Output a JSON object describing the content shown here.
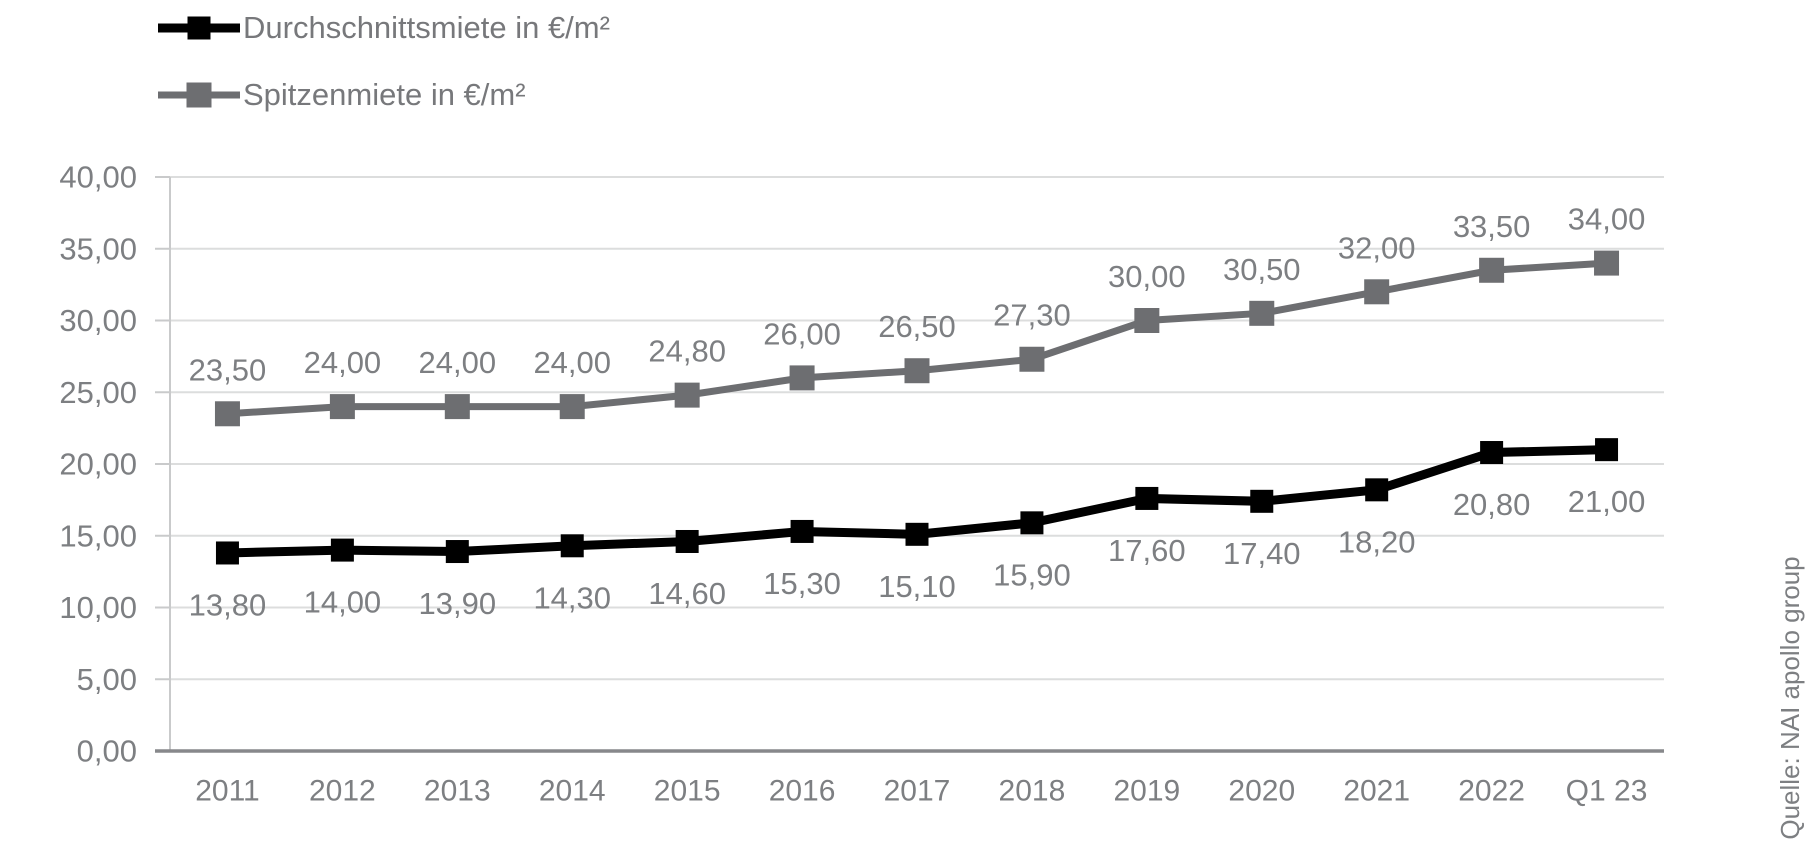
{
  "source_note": "Quelle: NAI apollo group",
  "colors": {
    "background": "#ffffff",
    "text_gray": "#7d7f82",
    "series_black": "#000000",
    "series_gray": "#6d6e71",
    "gridline": "#dcdddd",
    "axis_light": "#c9cacb",
    "axis_dark": "#87888b"
  },
  "chart_data": {
    "type": "line",
    "categories": [
      "2011",
      "2012",
      "2013",
      "2014",
      "2015",
      "2016",
      "2017",
      "2018",
      "2019",
      "2020",
      "2021",
      "2022",
      "Q1 23"
    ],
    "series": [
      {
        "name": "Durchschnittsmiete in €/m²",
        "color": "#000000",
        "marker": "square",
        "label_position": "below",
        "values": [
          13.8,
          14.0,
          13.9,
          14.3,
          14.6,
          15.3,
          15.1,
          15.9,
          17.6,
          17.4,
          18.2,
          20.8,
          21.0
        ],
        "labels": [
          "13,80",
          "14,00",
          "13,90",
          "14,30",
          "14,60",
          "15,30",
          "15,10",
          "15,90",
          "17,60",
          "17,40",
          "18,20",
          "20,80",
          "21,00"
        ]
      },
      {
        "name": "Spitzenmiete in €/m²",
        "color": "#6d6e71",
        "marker": "square",
        "label_position": "above",
        "values": [
          23.5,
          24.0,
          24.0,
          24.0,
          24.8,
          26.0,
          26.5,
          27.3,
          30.0,
          30.5,
          32.0,
          33.5,
          34.0
        ],
        "labels": [
          "23,50",
          "24,00",
          "24,00",
          "24,00",
          "24,80",
          "26,00",
          "26,50",
          "27,30",
          "30,00",
          "30,50",
          "32,00",
          "33,50",
          "34,00"
        ]
      }
    ],
    "ylim": [
      0,
      40
    ],
    "yticks": [
      0,
      5,
      10,
      15,
      20,
      25,
      30,
      35,
      40
    ],
    "ytick_labels": [
      "0,00",
      "5,00",
      "10,00",
      "15,00",
      "20,00",
      "25,00",
      "30,00",
      "35,00",
      "40,00"
    ],
    "xlabel": "",
    "ylabel": "",
    "grid": true,
    "legend_position": "top-left"
  }
}
